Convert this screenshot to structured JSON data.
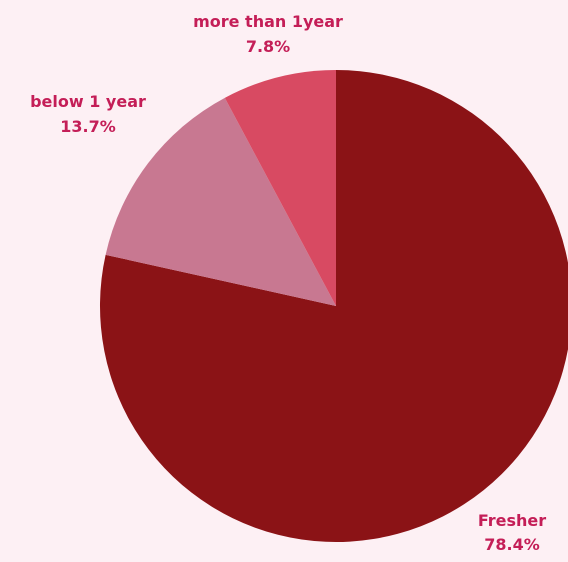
{
  "chart_data": {
    "type": "pie",
    "title": "",
    "slices": [
      {
        "label": "Fresher",
        "value": 78.4,
        "value_label": "78.4%",
        "color": "#8b1316"
      },
      {
        "label": "below 1 year",
        "value": 13.7,
        "value_label": "13.7%",
        "color": "#c87891"
      },
      {
        "label": "more than 1year",
        "value": 7.8,
        "value_label": "7.8%",
        "color": "#d84a62"
      }
    ],
    "start_angle_deg": 0,
    "direction": "clockwise",
    "legend": "none",
    "label_color": "#c41e57"
  }
}
